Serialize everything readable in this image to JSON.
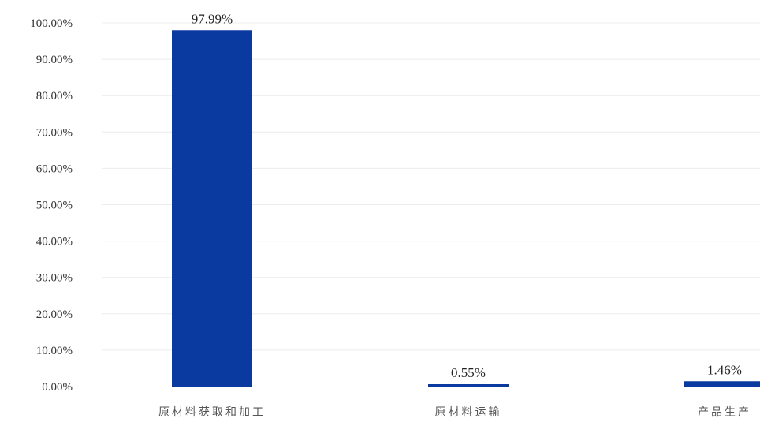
{
  "chart_data": {
    "type": "bar",
    "title": "",
    "xlabel": "",
    "ylabel": "",
    "categories": [
      "原材料获取和加工",
      "原材料运输",
      "产品生产"
    ],
    "values": [
      97.99,
      0.55,
      1.46
    ],
    "data_labels": [
      "97.99%",
      "0.55%",
      "1.46%"
    ],
    "ylim": [
      0,
      100
    ],
    "yticks": [
      0,
      10,
      20,
      30,
      40,
      50,
      60,
      70,
      80,
      90,
      100
    ],
    "ytick_labels": [
      "0.00%",
      "10.00%",
      "20.00%",
      "30.00%",
      "40.00%",
      "50.00%",
      "60.00%",
      "70.00%",
      "80.00%",
      "90.00%",
      "100.00%"
    ],
    "bar_color": "#0a3aa0",
    "grid": true,
    "legend": "none"
  }
}
